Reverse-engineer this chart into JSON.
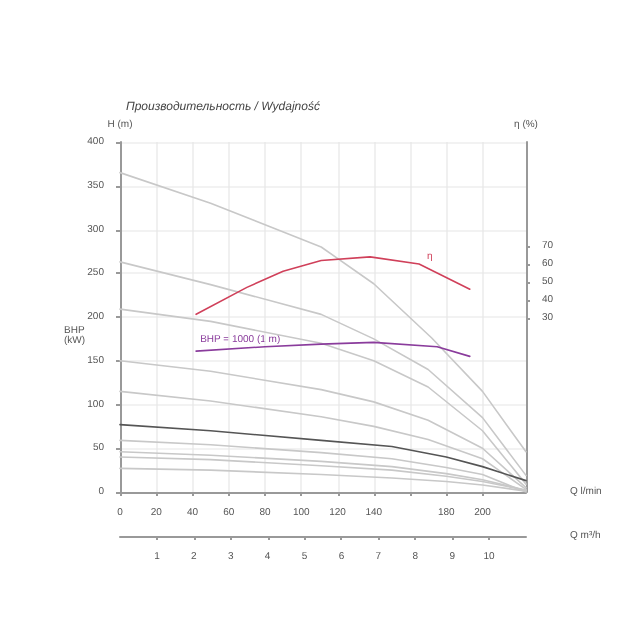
{
  "chart_data": {
    "type": "line",
    "title": "Производительность / Wydajność",
    "ylabel": "H (m)",
    "y2label": "η (%)",
    "xlabel": "Q l/min",
    "x2label": "Q m³/h",
    "xlim": [
      0,
      224
    ],
    "xticks": [
      0,
      20,
      40,
      60,
      80,
      100,
      120,
      140,
      {
        "value": 160,
        "label": null
      },
      180,
      200
    ],
    "x2lim": [
      0,
      11
    ],
    "x2ticks": [
      1,
      2,
      3,
      4,
      5,
      6,
      7,
      8,
      9,
      10
    ],
    "ylim": [
      0,
      400
    ],
    "yticks": [
      0,
      50,
      100,
      150,
      200,
      250,
      300,
      350,
      400
    ],
    "y2lim": [
      -67,
      128
    ],
    "y2ticks": [
      30,
      40,
      50,
      60,
      70
    ],
    "grid": true,
    "legend": false,
    "marker": "none",
    "line_style": "solid",
    "annotations": [
      "BHP (kW)"
    ],
    "series": [
      {
        "color": "#c8c8c8",
        "x": [
          0,
          50,
          111,
          140,
          172,
          200,
          224
        ],
        "values": [
          365,
          330,
          280,
          238,
          176,
          115,
          46
        ]
      },
      {
        "color": "#c8c8c8",
        "x": [
          0,
          50,
          111,
          140,
          170,
          200,
          224
        ],
        "values": [
          263,
          237,
          203,
          175,
          140,
          85,
          19
        ]
      },
      {
        "color": "#c8c8c8",
        "x": [
          0,
          50,
          111,
          140,
          170,
          200,
          224
        ],
        "values": [
          209,
          195,
          170,
          150,
          120,
          70,
          9
        ]
      },
      {
        "color": "#c8c8c8",
        "x": [
          0,
          50,
          111,
          140,
          170,
          200,
          224
        ],
        "values": [
          150,
          138,
          117,
          103,
          82,
          50,
          5
        ]
      },
      {
        "color": "#c8c8c8",
        "x": [
          0,
          50,
          111,
          140,
          170,
          200,
          224
        ],
        "values": [
          115,
          104,
          86,
          75,
          60,
          38,
          3
        ]
      },
      {
        "color": "#555555",
        "x": [
          0,
          50,
          111,
          150,
          180,
          200,
          224
        ],
        "values": [
          77,
          70,
          59,
          52,
          40,
          29,
          13
        ]
      },
      {
        "color": "#c8c8c8",
        "x": [
          0,
          50,
          111,
          150,
          180,
          200,
          224
        ],
        "values": [
          59,
          54,
          45,
          38,
          28,
          20,
          0
        ]
      },
      {
        "color": "#c8c8c8",
        "x": [
          0,
          50,
          111,
          150,
          180,
          200,
          224
        ],
        "values": [
          46,
          42,
          35,
          29,
          21,
          14,
          2
        ]
      },
      {
        "color": "#c8c8c8",
        "x": [
          0,
          50,
          111,
          150,
          180,
          200,
          224
        ],
        "values": [
          40,
          37,
          30,
          25,
          18,
          12,
          2
        ]
      },
      {
        "color": "#c8c8c8",
        "x": [
          0,
          50,
          111,
          150,
          180,
          200,
          224
        ],
        "values": [
          27,
          25,
          20,
          16,
          12,
          8,
          1
        ]
      },
      {
        "name": "BHP = 1000 (1 m)",
        "color": "#8a3c9c",
        "x": [
          42,
          80,
          111,
          140,
          175,
          193
        ],
        "values": [
          161,
          166,
          169,
          171,
          166,
          155
        ]
      },
      {
        "name": "η",
        "axis": "y2",
        "color": "#d0405a",
        "x": [
          42,
          70,
          90,
          111,
          138,
          165,
          193
        ],
        "values": [
          32,
          47,
          56,
          62,
          64,
          60,
          46
        ]
      }
    ]
  }
}
